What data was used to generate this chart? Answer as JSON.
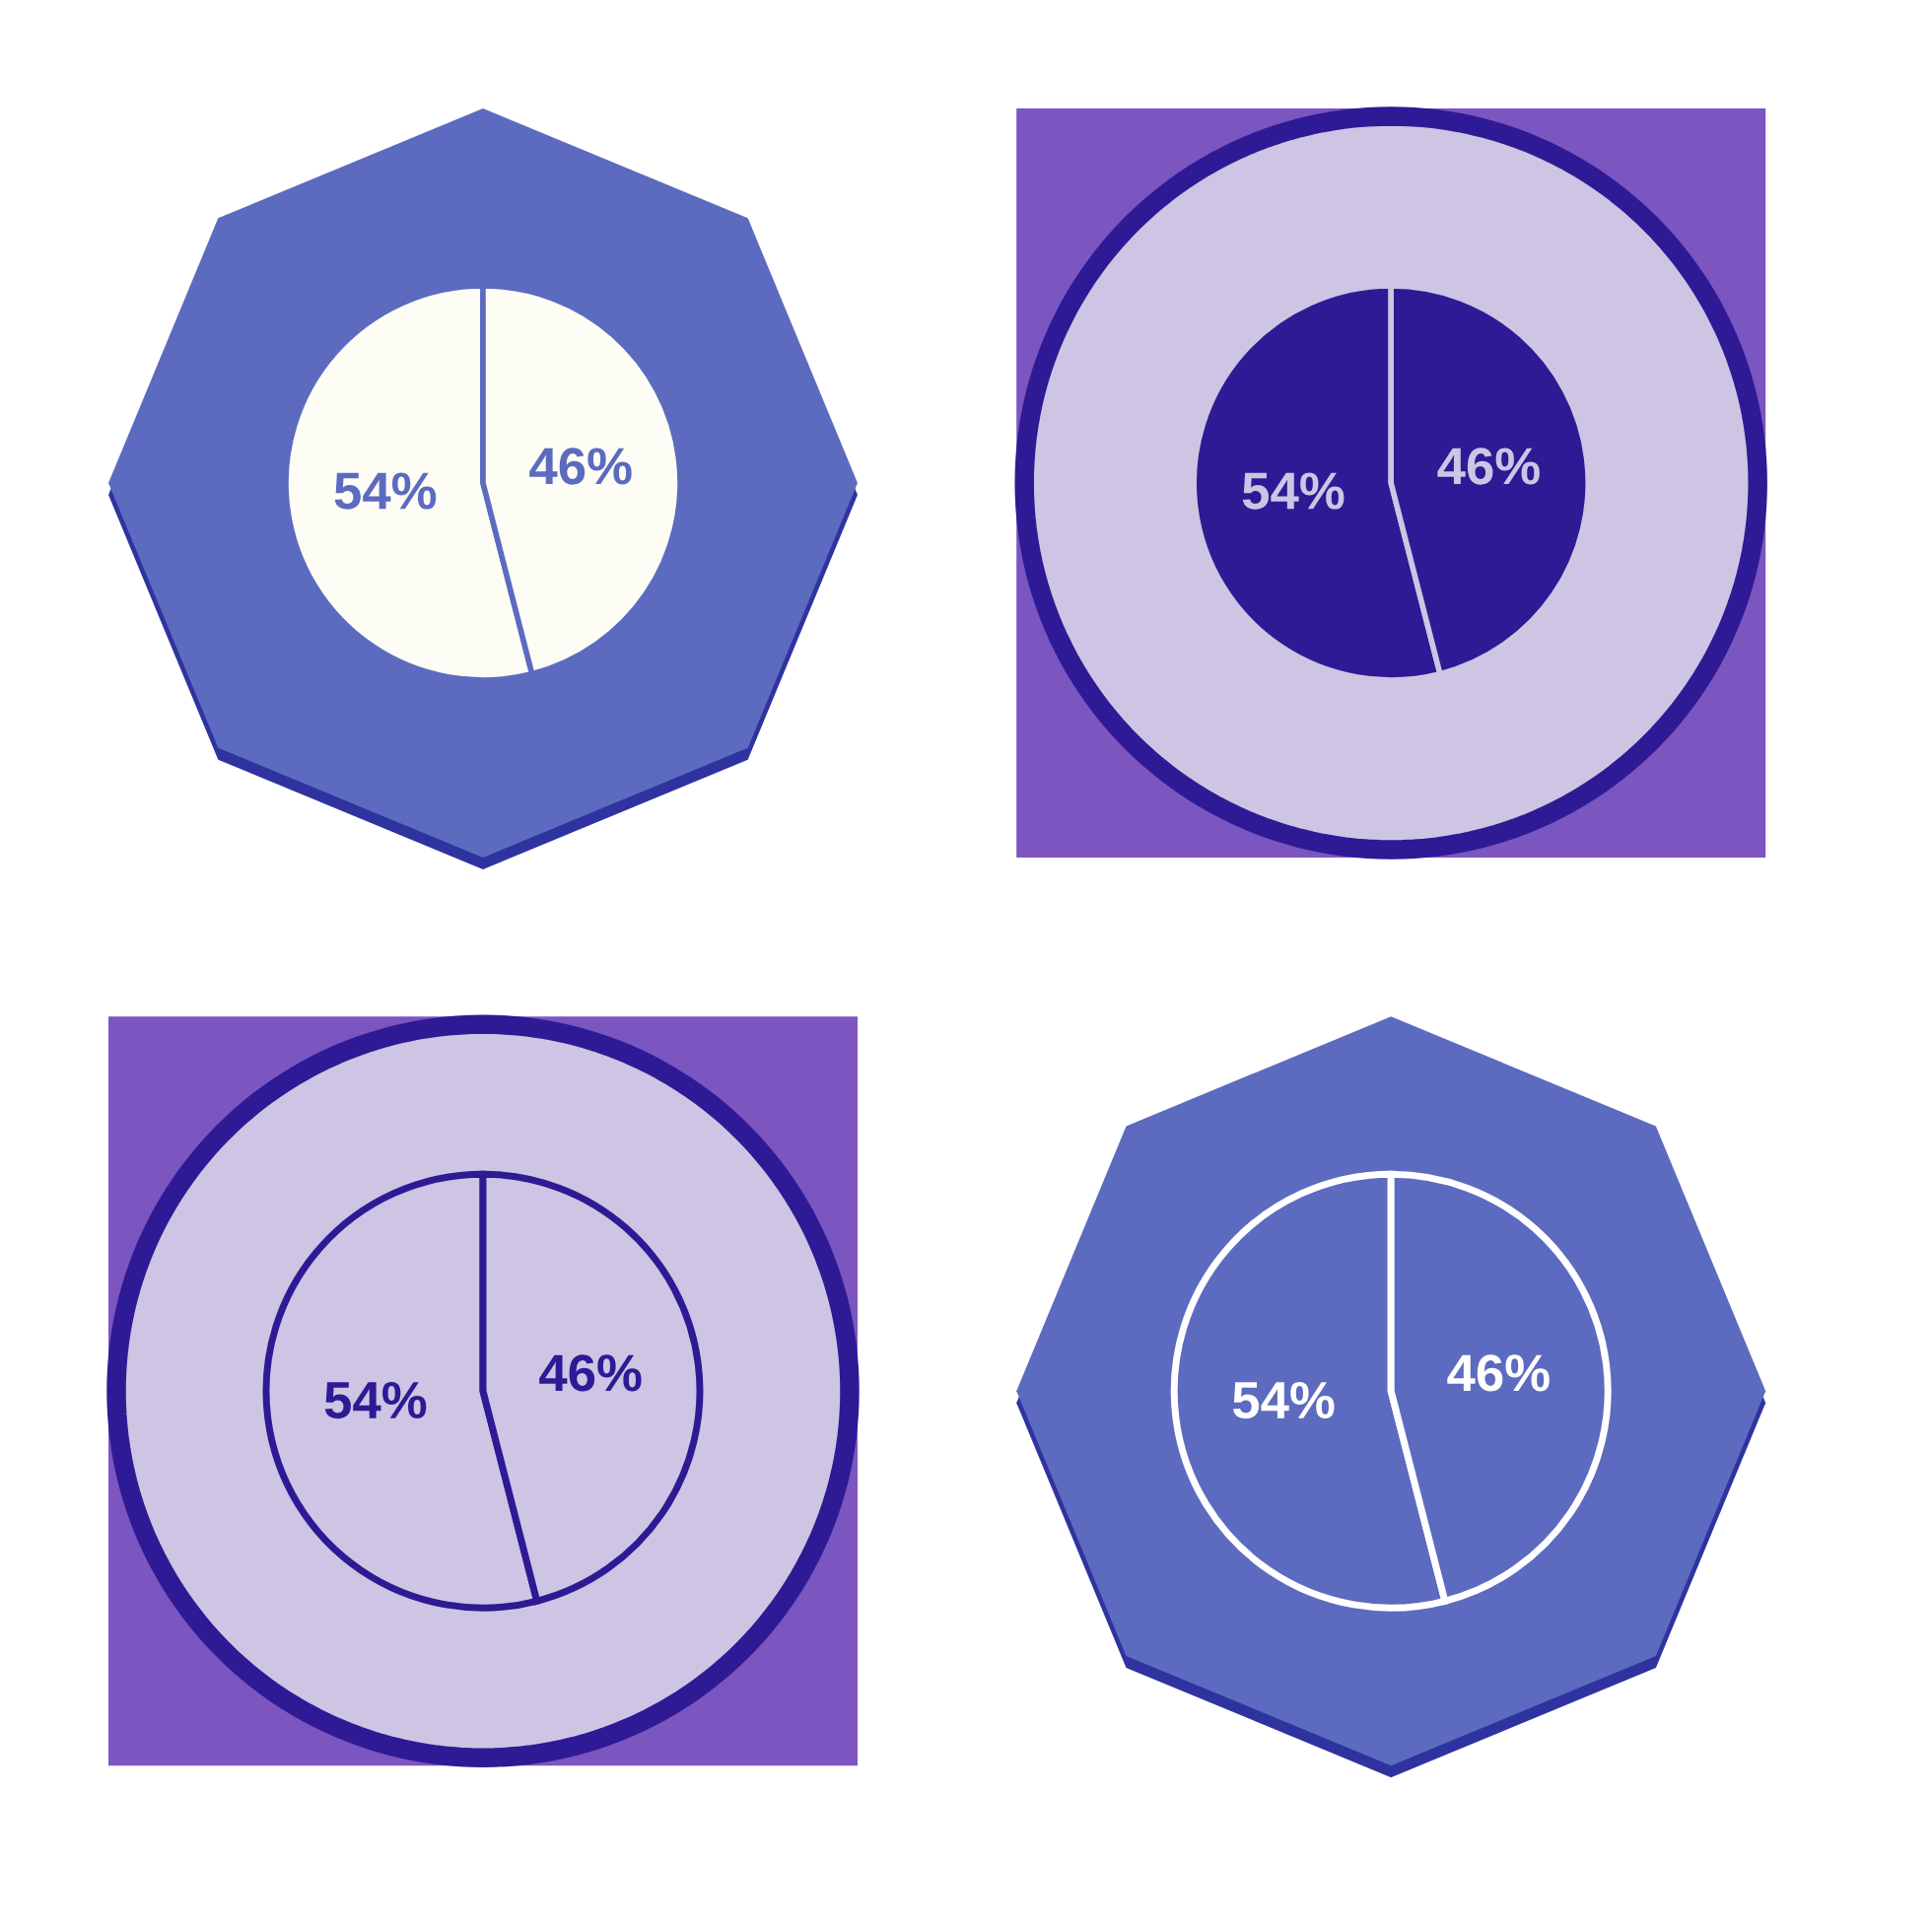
{
  "chart_data": [
    {
      "type": "pie",
      "categories": [
        null,
        null
      ],
      "values": [
        54,
        46
      ],
      "colors": [
        "#fdfdf5",
        "#fdfdf5"
      ],
      "value_labels": [
        "54%",
        "46%"
      ]
    },
    {
      "type": "pie",
      "categories": [
        null,
        null
      ],
      "values": [
        54,
        46
      ],
      "colors": [
        "#2e1a94",
        "#2e1a94"
      ],
      "value_labels": [
        "54%",
        "46%"
      ]
    },
    {
      "type": "pie",
      "categories": [
        null,
        null
      ],
      "values": [
        54,
        46
      ],
      "colors": [
        "#cdc5e3",
        "#cdc5e3"
      ],
      "value_labels": [
        "54%",
        "46%"
      ]
    },
    {
      "type": "pie",
      "categories": [
        null,
        null
      ],
      "values": [
        54,
        46
      ],
      "colors": [
        "#5c6bbf",
        "#5c6bbf"
      ],
      "value_labels": [
        "54%",
        "46%"
      ]
    }
  ]
}
